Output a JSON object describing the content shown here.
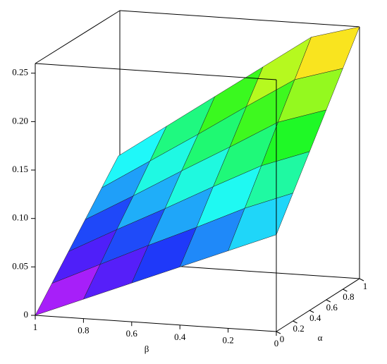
{
  "chart_data": {
    "type": "surface",
    "xlabel": "β",
    "ylabel": "α",
    "x": [
      1,
      0.8,
      0.6,
      0.4,
      0.2,
      0
    ],
    "y": [
      0,
      0.2,
      0.4,
      0.6,
      0.8,
      1
    ],
    "z": [
      [
        0,
        0.022,
        0.044,
        0.066,
        0.088,
        0.11
      ],
      [
        0.02,
        0.045,
        0.07,
        0.094,
        0.119,
        0.144
      ],
      [
        0.04,
        0.068,
        0.095,
        0.123,
        0.15,
        0.178
      ],
      [
        0.06,
        0.09,
        0.121,
        0.151,
        0.182,
        0.212
      ],
      [
        0.08,
        0.113,
        0.146,
        0.18,
        0.213,
        0.246
      ],
      [
        0.1,
        0.132,
        0.164,
        0.196,
        0.228,
        0.26
      ]
    ],
    "xlim": [
      1,
      0
    ],
    "ylim": [
      0,
      1
    ],
    "zlim": [
      0,
      0.26
    ],
    "xticks": [
      1,
      0.8,
      0.6,
      0.4,
      0.2,
      0
    ],
    "yticks": [
      0,
      0.2,
      0.4,
      0.6,
      0.8,
      1
    ],
    "zticks": [
      0,
      0.05,
      {
        "value": 0.1,
        "label": "0.10"
      },
      0.15,
      {
        "value": 0.2,
        "label": "0.20"
      },
      0.25
    ]
  }
}
